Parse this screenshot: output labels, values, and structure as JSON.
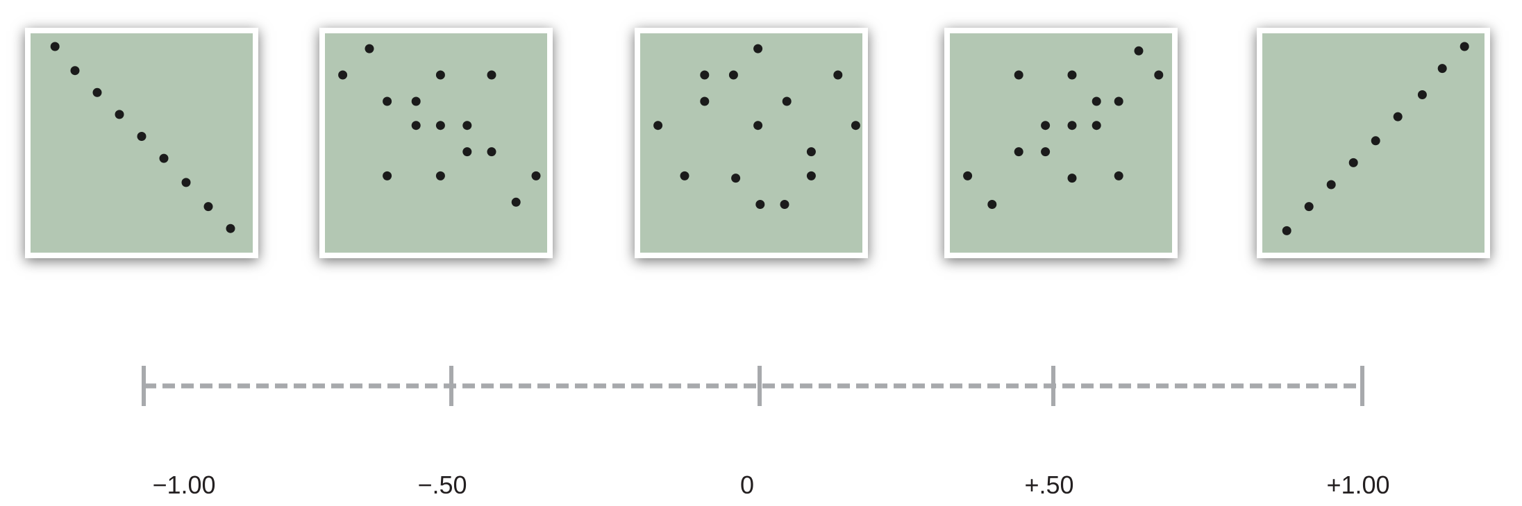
{
  "colors": {
    "panel_fill": "#b3c7b3",
    "point": "#1b1b1b",
    "scale_line": "#a7a9ac",
    "label_text": "#231f20"
  },
  "chart_data": {
    "type": "scatter",
    "panels": [
      {
        "correlation": -1.0,
        "points": [
          [
            0.11,
            0.06
          ],
          [
            0.2,
            0.17
          ],
          [
            0.3,
            0.27
          ],
          [
            0.4,
            0.37
          ],
          [
            0.5,
            0.47
          ],
          [
            0.6,
            0.57
          ],
          [
            0.7,
            0.68
          ],
          [
            0.8,
            0.79
          ],
          [
            0.9,
            0.89
          ]
        ]
      },
      {
        "correlation": -0.5,
        "points": [
          [
            0.08,
            0.19
          ],
          [
            0.2,
            0.07
          ],
          [
            0.28,
            0.31
          ],
          [
            0.41,
            0.31
          ],
          [
            0.52,
            0.19
          ],
          [
            0.75,
            0.19
          ],
          [
            0.41,
            0.42
          ],
          [
            0.52,
            0.42
          ],
          [
            0.64,
            0.42
          ],
          [
            0.64,
            0.54
          ],
          [
            0.75,
            0.54
          ],
          [
            0.28,
            0.65
          ],
          [
            0.52,
            0.65
          ],
          [
            0.86,
            0.77
          ],
          [
            0.95,
            0.65
          ]
        ]
      },
      {
        "correlation": 0,
        "points": [
          [
            0.53,
            0.07
          ],
          [
            0.29,
            0.19
          ],
          [
            0.42,
            0.19
          ],
          [
            0.89,
            0.19
          ],
          [
            0.29,
            0.31
          ],
          [
            0.66,
            0.31
          ],
          [
            0.08,
            0.42
          ],
          [
            0.53,
            0.42
          ],
          [
            0.97,
            0.42
          ],
          [
            0.77,
            0.54
          ],
          [
            0.2,
            0.65
          ],
          [
            0.43,
            0.66
          ],
          [
            0.77,
            0.65
          ],
          [
            0.54,
            0.78
          ],
          [
            0.65,
            0.78
          ]
        ]
      },
      {
        "correlation": 0.5,
        "points": [
          [
            0.08,
            0.65
          ],
          [
            0.19,
            0.78
          ],
          [
            0.31,
            0.19
          ],
          [
            0.55,
            0.19
          ],
          [
            0.85,
            0.08
          ],
          [
            0.94,
            0.19
          ],
          [
            0.66,
            0.31
          ],
          [
            0.76,
            0.31
          ],
          [
            0.43,
            0.42
          ],
          [
            0.55,
            0.42
          ],
          [
            0.66,
            0.42
          ],
          [
            0.31,
            0.54
          ],
          [
            0.43,
            0.54
          ],
          [
            0.55,
            0.66
          ],
          [
            0.76,
            0.65
          ]
        ]
      },
      {
        "correlation": 1.0,
        "points": [
          [
            0.11,
            0.9
          ],
          [
            0.21,
            0.79
          ],
          [
            0.31,
            0.69
          ],
          [
            0.41,
            0.59
          ],
          [
            0.51,
            0.49
          ],
          [
            0.61,
            0.38
          ],
          [
            0.72,
            0.28
          ],
          [
            0.81,
            0.16
          ],
          [
            0.91,
            0.06
          ]
        ]
      }
    ],
    "scale": {
      "tick_values": [
        -1.0,
        -0.5,
        0,
        0.5,
        1.0
      ],
      "tick_labels": [
        "−1.00",
        "−.50",
        "0",
        "+.50",
        "+1.00"
      ]
    }
  }
}
